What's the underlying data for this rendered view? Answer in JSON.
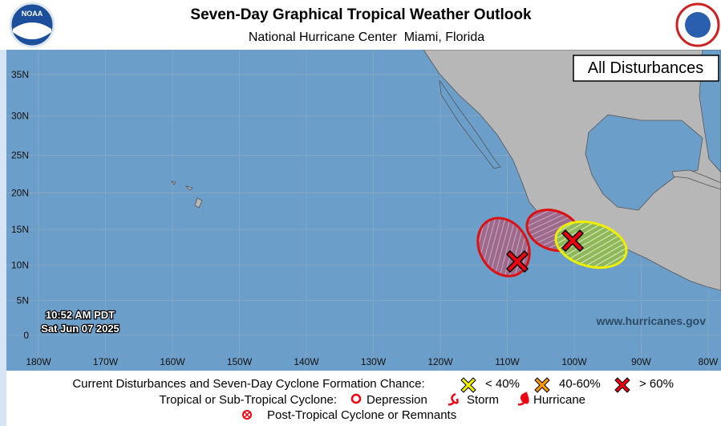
{
  "header": {
    "title": "Seven-Day Graphical Tropical Weather Outlook",
    "subtitle": "National Hurricane Center  Miami, Florida",
    "logo": "NOAA"
  },
  "map": {
    "panel_label": "All Disturbances",
    "timestamp": [
      "10:52 AM PDT",
      "Sat Jun 07 2025"
    ],
    "website": "www.hurricanes.gov",
    "lon_ticks": [
      {
        "value": -180,
        "label": "180W"
      },
      {
        "value": -170,
        "label": "170W"
      },
      {
        "value": -160,
        "label": "160W"
      },
      {
        "value": -150,
        "label": "150W"
      },
      {
        "value": -140,
        "label": "140W"
      },
      {
        "value": -130,
        "label": "130W"
      },
      {
        "value": -120,
        "label": "120W"
      },
      {
        "value": -110,
        "label": "110W"
      },
      {
        "value": -100,
        "label": "100W"
      },
      {
        "value": -90,
        "label": "90W"
      },
      {
        "value": -80,
        "label": "80W"
      }
    ],
    "lat_ticks": [
      {
        "value": 35,
        "label": "35N"
      },
      {
        "value": 30,
        "label": "30N"
      },
      {
        "value": 25,
        "label": "25N"
      },
      {
        "value": 20,
        "label": "20N"
      },
      {
        "value": 15,
        "label": "15N"
      },
      {
        "value": 10,
        "label": "10N"
      },
      {
        "value": 5,
        "label": "5N"
      },
      0
    ]
  },
  "legend": {
    "formation_title": "Current Disturbances and Seven-Day Cyclone Formation Chance:",
    "chances": [
      "< 40%",
      "40-60%",
      "> 60%"
    ],
    "cyclone_title": "Tropical or Sub-Tropical Cyclone:",
    "cyclones": [
      "Depression",
      "Storm",
      "Hurricane"
    ],
    "post_tropical": "Post-Tropical Cyclone or Remnants"
  }
}
